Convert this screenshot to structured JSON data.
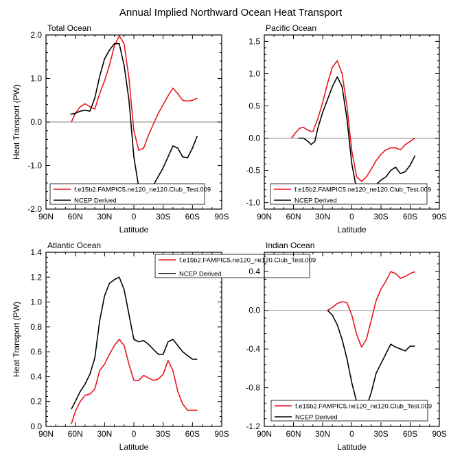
{
  "figure": {
    "title": "Annual Implied Northward Ocean Heat Transport"
  },
  "chart_data": [
    {
      "type": "line",
      "title": "Total Ocean",
      "xlabel": "Latitude",
      "ylabel": "Heat Transport (PW)",
      "xlim": [
        90,
        -90
      ],
      "ylim": [
        -2.0,
        2.0
      ],
      "x_ticks": [
        90,
        60,
        30,
        0,
        -30,
        -60,
        -90
      ],
      "x_tick_labels": [
        "90N",
        "60N",
        "30N",
        "0",
        "30S",
        "60S",
        "90S"
      ],
      "y_ticks": [
        -2.0,
        -1.0,
        0.0,
        1.0,
        2.0
      ],
      "y_tick_labels": [
        "-2.0",
        "-1.0",
        "0.0",
        "1.0",
        "2.0"
      ],
      "legend": {
        "location": "lower-left",
        "entries": [
          "f.e15b2.FAMPIC5.ne120_ne120.Club_Test.009",
          "NCEP Derived"
        ]
      },
      "series": [
        {
          "name": "f.e15b2.FAMPIC5.ne120_ne120.Club_Test.009",
          "color": "#e8161d",
          "x": [
            64,
            60,
            55,
            50,
            45,
            40,
            35,
            30,
            25,
            20,
            15,
            10,
            5,
            0,
            -5,
            -10,
            -15,
            -20,
            -25,
            -30,
            -35,
            -40,
            -45,
            -50,
            -55,
            -60,
            -65
          ],
          "y": [
            0.0,
            0.2,
            0.35,
            0.42,
            0.35,
            0.3,
            0.65,
            0.95,
            1.3,
            1.75,
            1.98,
            1.8,
            1.0,
            -0.2,
            -0.65,
            -0.6,
            -0.3,
            -0.05,
            0.2,
            0.4,
            0.6,
            0.78,
            0.65,
            0.5,
            0.48,
            0.5,
            0.55
          ]
        },
        {
          "name": "NCEP Derived",
          "color": "#000000",
          "x": [
            65,
            60,
            55,
            50,
            45,
            40,
            35,
            30,
            25,
            20,
            15,
            10,
            5,
            0,
            -5,
            -10,
            -15,
            -20,
            -25,
            -30,
            -35,
            -40,
            -45,
            -50,
            -55,
            -60,
            -65
          ],
          "y": [
            0.18,
            0.2,
            0.25,
            0.27,
            0.25,
            0.55,
            1.05,
            1.45,
            1.65,
            1.8,
            1.8,
            1.3,
            0.5,
            -0.8,
            -1.5,
            -1.66,
            -1.55,
            -1.45,
            -1.25,
            -1.05,
            -0.8,
            -0.55,
            -0.6,
            -0.8,
            -0.82,
            -0.6,
            -0.32
          ]
        }
      ]
    },
    {
      "type": "line",
      "title": "Pacific Ocean",
      "xlabel": "Latitude",
      "ylabel": "",
      "xlim": [
        90,
        -90
      ],
      "ylim": [
        -1.1,
        1.6
      ],
      "x_ticks": [
        90,
        60,
        30,
        0,
        -30,
        -60,
        -90
      ],
      "x_tick_labels": [
        "90N",
        "60N",
        "30N",
        "0",
        "30S",
        "60S",
        "90S"
      ],
      "y_ticks": [
        -1.0,
        -0.5,
        0.0,
        0.5,
        1.0,
        1.5
      ],
      "y_tick_labels": [
        "-1.0",
        "-0.5",
        "0.0",
        "0.5",
        "1.0",
        "1.5"
      ],
      "legend": {
        "location": "lower-left",
        "entries": [
          "f.e15b2.FAMPIC5.ne120_ne120.Club_Test.009",
          "NCEP Derived"
        ]
      },
      "series": [
        {
          "name": "f.e15b2.FAMPIC5.ne120_ne120.Club_Test.009",
          "color": "#e8161d",
          "x": [
            62,
            58,
            54,
            50,
            45,
            40,
            35,
            30,
            25,
            20,
            15,
            10,
            5,
            0,
            -5,
            -10,
            -15,
            -20,
            -25,
            -30,
            -35,
            -40,
            -45,
            -50,
            -55,
            -60,
            -65
          ],
          "y": [
            0.0,
            0.08,
            0.15,
            0.17,
            0.12,
            0.1,
            0.3,
            0.55,
            0.85,
            1.1,
            1.2,
            1.0,
            0.5,
            -0.2,
            -0.6,
            -0.67,
            -0.6,
            -0.48,
            -0.35,
            -0.25,
            -0.18,
            -0.15,
            -0.15,
            -0.18,
            -0.1,
            -0.05,
            0.0
          ]
        },
        {
          "name": "NCEP Derived",
          "color": "#000000",
          "x": [
            55,
            50,
            45,
            42,
            38,
            35,
            30,
            25,
            20,
            15,
            10,
            5,
            0,
            -5,
            -10,
            -15,
            -20,
            -25,
            -30,
            -35,
            -40,
            -45,
            -50,
            -55,
            -60,
            -65
          ],
          "y": [
            0.0,
            0.0,
            -0.05,
            -0.1,
            -0.05,
            0.15,
            0.4,
            0.6,
            0.8,
            0.95,
            0.8,
            0.3,
            -0.4,
            -0.8,
            -0.93,
            -0.85,
            -0.8,
            -0.72,
            -0.65,
            -0.6,
            -0.5,
            -0.45,
            -0.55,
            -0.52,
            -0.42,
            -0.27
          ]
        }
      ]
    },
    {
      "type": "line",
      "title": "Atlantic Ocean",
      "xlabel": "Latitude",
      "ylabel": "Heat Transport (PW)",
      "xlim": [
        90,
        -90
      ],
      "ylim": [
        0.0,
        1.4
      ],
      "x_ticks": [
        90,
        60,
        30,
        0,
        -30,
        -60,
        -90
      ],
      "x_tick_labels": [
        "90N",
        "60N",
        "30N",
        "0",
        "30S",
        "60S",
        "90S"
      ],
      "y_ticks": [
        0.0,
        0.2,
        0.4,
        0.6,
        0.8,
        1.0,
        1.2,
        1.4
      ],
      "y_tick_labels": [
        "0.0",
        "0.2",
        "0.4",
        "0.6",
        "0.8",
        "1.0",
        "1.2",
        "1.4"
      ],
      "legend": {
        "location": "top-right",
        "entries": [
          "f.e15b2.FAMPIC5.ne120_ne120.Club_Test.009",
          "NCEP Derived"
        ]
      },
      "series": [
        {
          "name": "f.e15b2.FAMPIC5.ne120_ne120.Club_Test.009",
          "color": "#e8161d",
          "x": [
            64,
            60,
            55,
            50,
            45,
            40,
            35,
            30,
            25,
            20,
            15,
            10,
            5,
            0,
            -5,
            -10,
            -15,
            -20,
            -25,
            -30,
            -35,
            -40,
            -45,
            -50,
            -55,
            -60,
            -65
          ],
          "y": [
            0.02,
            0.12,
            0.2,
            0.25,
            0.26,
            0.3,
            0.45,
            0.5,
            0.58,
            0.65,
            0.7,
            0.65,
            0.5,
            0.37,
            0.37,
            0.41,
            0.39,
            0.37,
            0.38,
            0.42,
            0.53,
            0.45,
            0.28,
            0.18,
            0.13,
            0.13,
            0.13
          ]
        },
        {
          "name": "NCEP Derived",
          "color": "#000000",
          "x": [
            64,
            60,
            55,
            50,
            45,
            40,
            35,
            30,
            25,
            20,
            15,
            10,
            5,
            0,
            -5,
            -10,
            -15,
            -20,
            -25,
            -30,
            -35,
            -40,
            -45,
            -50,
            -55,
            -60,
            -65
          ],
          "y": [
            0.14,
            0.2,
            0.28,
            0.34,
            0.42,
            0.55,
            0.85,
            1.05,
            1.15,
            1.18,
            1.2,
            1.1,
            0.9,
            0.7,
            0.68,
            0.69,
            0.66,
            0.62,
            0.58,
            0.58,
            0.68,
            0.7,
            0.65,
            0.6,
            0.57,
            0.54,
            0.54
          ]
        }
      ]
    },
    {
      "type": "line",
      "title": "Indian Ocean",
      "xlabel": "Latitude",
      "ylabel": "",
      "xlim": [
        90,
        -90
      ],
      "ylim": [
        -1.2,
        0.6
      ],
      "x_ticks": [
        90,
        60,
        30,
        0,
        -30,
        -60,
        -90
      ],
      "x_tick_labels": [
        "90N",
        "60N",
        "30N",
        "0",
        "30S",
        "60S",
        "90S"
      ],
      "y_ticks": [
        -1.2,
        -0.8,
        -0.4,
        0.0,
        0.4
      ],
      "y_tick_labels": [
        "-1.2",
        "-0.8",
        "-0.4",
        "0.0",
        "0.4"
      ],
      "legend": {
        "location": "lower-right",
        "entries": [
          "f.e15b2.FAMPIC5.ne120_ne120.Club_Test.009",
          "NCEP Derived"
        ]
      },
      "series": [
        {
          "name": "f.e15b2.FAMPIC5.ne120_ne120.Club_Test.009",
          "color": "#e8161d",
          "x": [
            25,
            20,
            15,
            10,
            5,
            0,
            -5,
            -10,
            -15,
            -20,
            -25,
            -30,
            -35,
            -40,
            -45,
            -50,
            -55,
            -60,
            -65
          ],
          "y": [
            0.0,
            0.03,
            0.07,
            0.09,
            0.08,
            -0.05,
            -0.25,
            -0.38,
            -0.3,
            -0.1,
            0.1,
            0.22,
            0.3,
            0.4,
            0.38,
            0.33,
            0.35,
            0.38,
            0.4
          ]
        },
        {
          "name": "NCEP Derived",
          "color": "#000000",
          "x": [
            25,
            20,
            15,
            10,
            5,
            0,
            -5,
            -10,
            -15,
            -20,
            -25,
            -30,
            -35,
            -40,
            -45,
            -50,
            -55,
            -60,
            -65
          ],
          "y": [
            0.0,
            -0.05,
            -0.15,
            -0.3,
            -0.5,
            -0.75,
            -0.95,
            -1.03,
            -1.0,
            -0.85,
            -0.65,
            -0.55,
            -0.45,
            -0.35,
            -0.38,
            -0.4,
            -0.42,
            -0.37,
            -0.37
          ]
        }
      ]
    }
  ]
}
